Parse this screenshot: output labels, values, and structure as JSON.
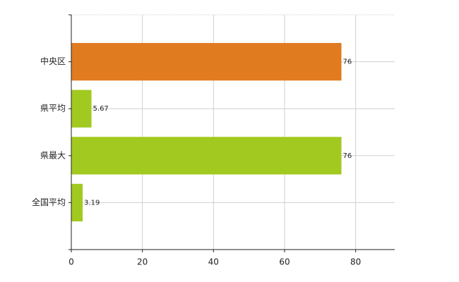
{
  "chart_data": {
    "type": "hbar",
    "categories": [
      "中央区",
      "県平均",
      "県最大",
      "全国平均"
    ],
    "values": [
      76,
      5.67,
      76,
      3.19
    ],
    "colors": [
      "#e07b20",
      "#a2c920",
      "#a2c920",
      "#a2c920"
    ],
    "xlim": [
      0,
      91
    ],
    "xticks": [
      0,
      20,
      40,
      60,
      80
    ],
    "grid": true
  }
}
